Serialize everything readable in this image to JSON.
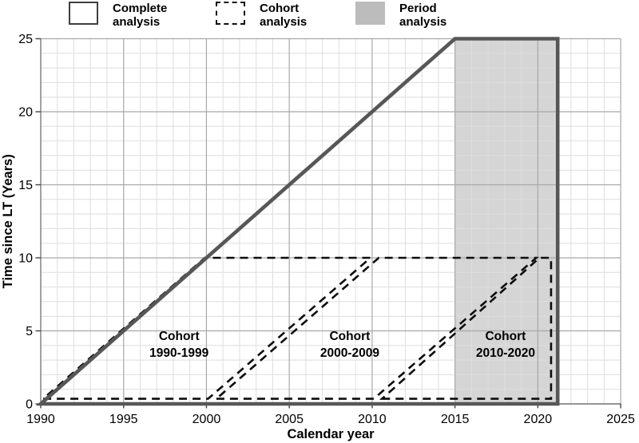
{
  "legend": {
    "items": [
      {
        "label_line1": "Complete",
        "label_line2": "analysis",
        "swatch": "solid-outline"
      },
      {
        "label_line1": "Cohort",
        "label_line2": "analysis",
        "swatch": "dashed-outline"
      },
      {
        "label_line1": "Period",
        "label_line2": "analysis",
        "swatch": "gray-fill"
      }
    ]
  },
  "chart_data": {
    "type": "area",
    "description": "Lexis-style diagram showing complete, cohort and period analysis regions of follow-up time versus calendar year",
    "title": "",
    "xlabel": "Calendar year",
    "ylabel": "Time since LT (Years)",
    "xlim": [
      1990,
      2025
    ],
    "ylim": [
      0,
      25
    ],
    "x_ticks": [
      1990,
      1995,
      2000,
      2005,
      2010,
      2015,
      2020,
      2025
    ],
    "y_ticks": [
      0,
      5,
      10,
      15,
      20,
      25
    ],
    "grid": {
      "minor_step": 1,
      "major_step": 5,
      "on": true
    },
    "colors": {
      "outline": "#575757",
      "dashed": "#0d0d0d",
      "period_fill": "#d5d5d5",
      "grid_minor": "#dedede",
      "grid_major": "#a8a8a8",
      "axis": "#707070",
      "text": "#000000",
      "legend_gray": "#bcbcbc"
    },
    "regions": {
      "complete": {
        "name": "Complete analysis",
        "points": [
          [
            1990,
            0
          ],
          [
            2015,
            25
          ],
          [
            2021.2,
            25
          ],
          [
            2021.2,
            0
          ]
        ]
      },
      "period": {
        "name": "Period analysis",
        "points": [
          [
            2015,
            0
          ],
          [
            2021.2,
            0
          ],
          [
            2021.2,
            25
          ],
          [
            2015,
            25
          ]
        ]
      },
      "cohorts": [
        {
          "label_line1": "Cohort",
          "label_line2": "1990-1999",
          "label_at": [
            1998.35,
            4.15
          ],
          "points": [
            [
              1990.15,
              0.35
            ],
            [
              2000.1,
              0.35
            ],
            [
              2009.9,
              10
            ],
            [
              1999.9,
              10
            ]
          ]
        },
        {
          "label_line1": "Cohort",
          "label_line2": "2000-2009",
          "label_at": [
            2008.65,
            4.15
          ],
          "points": [
            [
              2000.6,
              0.35
            ],
            [
              2010.1,
              0.35
            ],
            [
              2019.9,
              10
            ],
            [
              2010.4,
              10
            ]
          ]
        },
        {
          "label_line1": "Cohort",
          "label_line2": "2010-2020",
          "label_at": [
            2018.05,
            4.15
          ],
          "points": [
            [
              2010.6,
              0.35
            ],
            [
              2020.8,
              0.35
            ],
            [
              2020.8,
              10
            ],
            [
              2020.1,
              10
            ]
          ]
        }
      ]
    }
  }
}
